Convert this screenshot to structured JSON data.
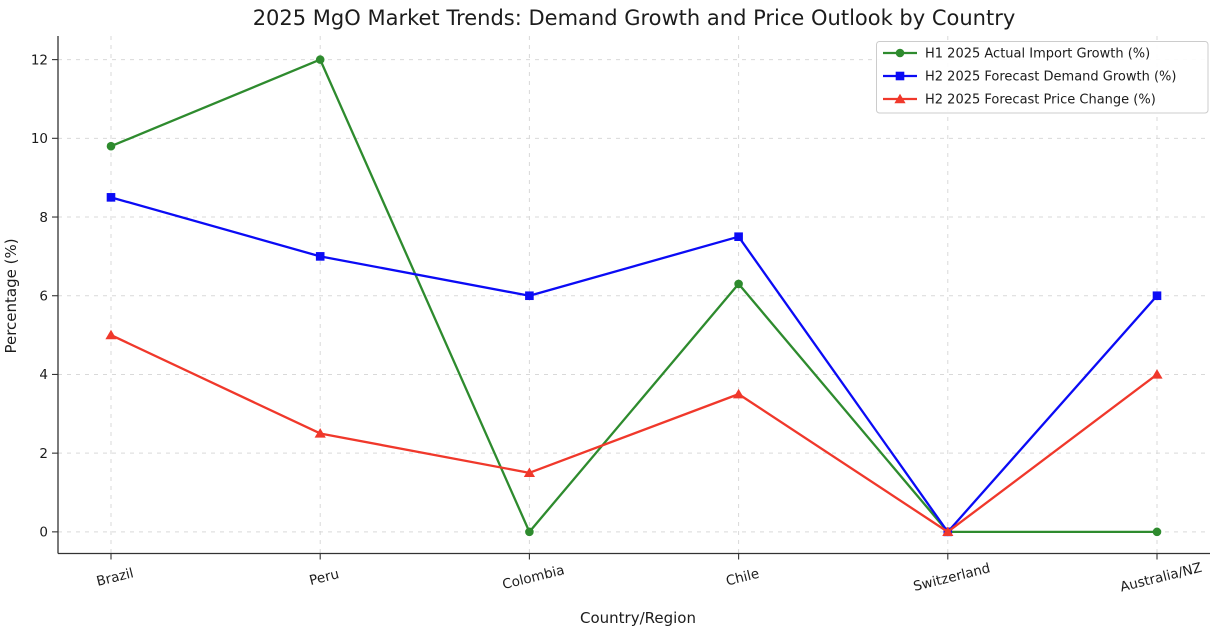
{
  "chart_data": {
    "type": "line",
    "title": "2025 MgO Market Trends: Demand Growth and Price Outlook by Country",
    "xlabel": "Country/Region",
    "ylabel": "Percentage (%)",
    "categories": [
      "Brazil",
      "Peru",
      "Colombia",
      "Chile",
      "Switzerland",
      "Australia/NZ"
    ],
    "yticks": [
      0,
      2,
      4,
      6,
      8,
      10,
      12
    ],
    "ylim": [
      -0.55,
      12.6
    ],
    "grid": true,
    "grid_style": "dashed",
    "legend_position": "upper-right",
    "background": "#ffffff",
    "series": [
      {
        "name": "H1 2025 Actual Import Growth (%)",
        "color": "#2E8B2E",
        "marker": "circle",
        "values": [
          9.8,
          12.0,
          0.0,
          6.3,
          0.0,
          0.0
        ]
      },
      {
        "name": "H2 2025 Forecast Demand Growth (%)",
        "color": "#0B0BF5",
        "marker": "square",
        "values": [
          8.5,
          7.0,
          6.0,
          7.5,
          0.0,
          6.0
        ]
      },
      {
        "name": "H2 2025 Forecast Price Change (%)",
        "color": "#F0382B",
        "marker": "triangle-up",
        "values": [
          5.0,
          2.5,
          1.5,
          3.5,
          0.0,
          4.0
        ]
      }
    ]
  }
}
